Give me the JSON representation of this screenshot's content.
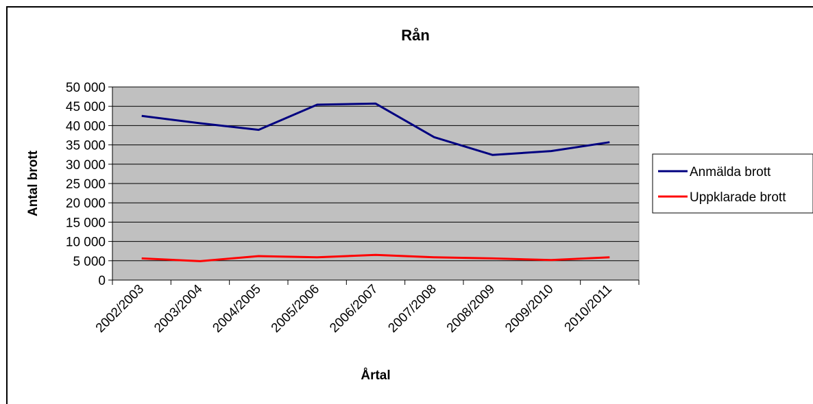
{
  "chart_data": {
    "type": "line",
    "title": "Rån",
    "xlabel": "Årtal",
    "ylabel": "Antal brott",
    "categories": [
      "2002/2003",
      "2003/2004",
      "2004/2005",
      "2005/2006",
      "2006/2007",
      "2007/2008",
      "2008/2009",
      "2009/2010",
      "2010/2011"
    ],
    "ylim": [
      0,
      50000
    ],
    "yticks": [
      0,
      5000,
      10000,
      15000,
      20000,
      25000,
      30000,
      35000,
      40000,
      45000,
      50000
    ],
    "ytick_labels": [
      "0",
      "5 000",
      "10 000",
      "15 000",
      "20 000",
      "25 000",
      "30 000",
      "35 000",
      "40 000",
      "45 000",
      "50 000"
    ],
    "grid": true,
    "plot_background": "#c0c0c0",
    "legend_position": "right",
    "series": [
      {
        "name": "Anmälda brott",
        "color": "#000080",
        "values": [
          42500,
          40600,
          38900,
          45400,
          45700,
          37000,
          32400,
          33400,
          35700
        ]
      },
      {
        "name": "Uppklarade brott",
        "color": "#ff0000",
        "values": [
          5600,
          4900,
          6200,
          5900,
          6500,
          5900,
          5600,
          5200,
          5900
        ]
      }
    ]
  }
}
